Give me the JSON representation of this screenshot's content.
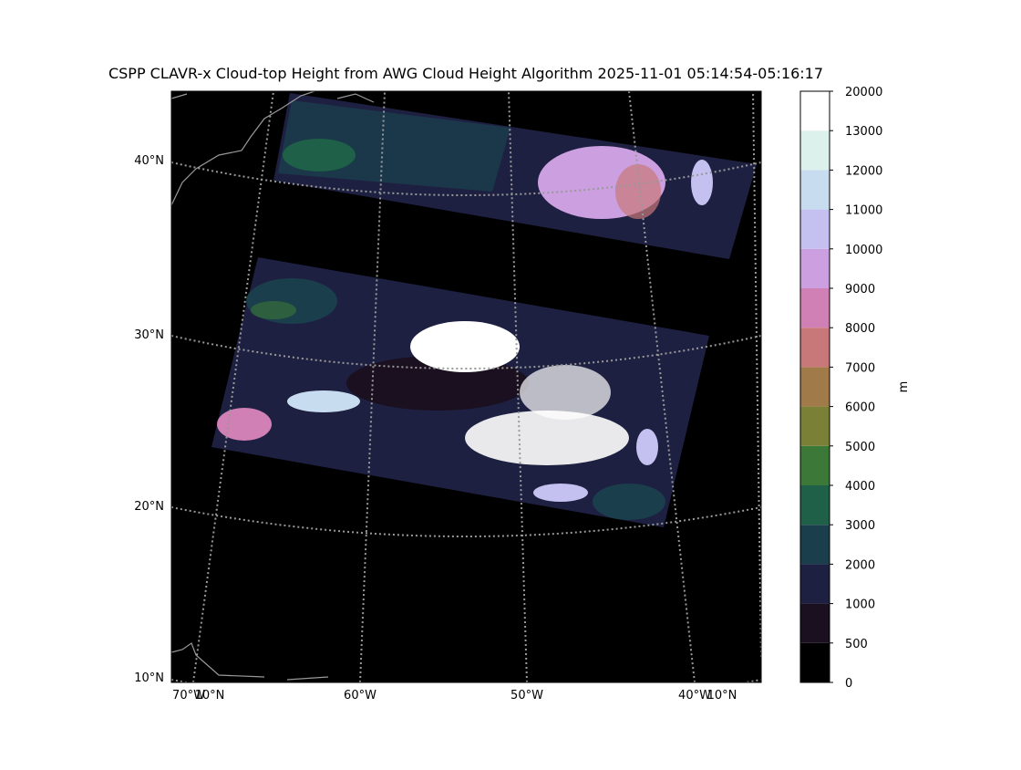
{
  "title": "CSPP CLAVR-x Cloud-top Height from AWG Cloud Height Algorithm 2025-11-01 05:14:54-05:16:17",
  "lat_labels": [
    "40°N",
    "30°N",
    "20°N",
    "10°N"
  ],
  "lon_labels": [
    "70°W",
    "10°N",
    "60°W",
    "50°W",
    "40°W",
    "10°N"
  ],
  "colorbar": {
    "label": "m",
    "ticks": [
      0,
      500,
      1000,
      2000,
      3000,
      4000,
      5000,
      6000,
      7000,
      8000,
      9000,
      10000,
      11000,
      12000,
      13000,
      20000
    ],
    "colors": [
      "#000000",
      "#1a1020",
      "#1e2042",
      "#1a3e4c",
      "#1f6048",
      "#3c7838",
      "#7a8036",
      "#a07a48",
      "#c87878",
      "#d080b4",
      "#cca0e0",
      "#c4c0f0",
      "#c8dcf0",
      "#dcf0ec",
      "#ffffff"
    ]
  }
}
